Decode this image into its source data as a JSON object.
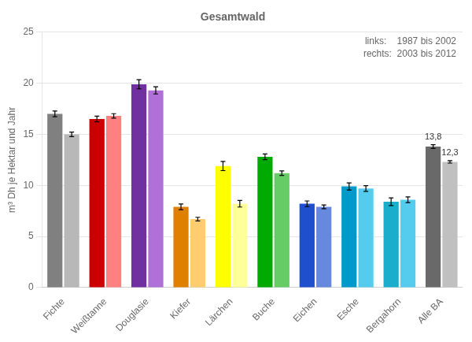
{
  "chart_data": {
    "type": "bar",
    "title": "Gesamtwald",
    "categories": [
      "Fichte",
      "Weißtanne",
      "Douglasie",
      "Kiefer",
      "Lärchen",
      "Buche",
      "Eichen",
      "Esche",
      "Bergahorn",
      "Alle BA"
    ],
    "series": [
      {
        "name": "links:    1987 bis 2002",
        "values": [
          17.0,
          16.5,
          19.9,
          7.9,
          11.9,
          12.8,
          8.2,
          9.9,
          8.4,
          13.8
        ],
        "errors": [
          0.28,
          0.28,
          0.45,
          0.28,
          0.45,
          0.28,
          0.28,
          0.35,
          0.38,
          0.18
        ],
        "colors": [
          "#808080",
          "#cc0000",
          "#7030a0",
          "#e08000",
          "#ffff00",
          "#00aa00",
          "#1f4fcc",
          "#0099cc",
          "#1aadcc",
          "#696969"
        ]
      },
      {
        "name": "rechts:  2003 bis 2012",
        "values": [
          15.0,
          16.8,
          19.3,
          6.7,
          8.2,
          11.2,
          7.9,
          9.7,
          8.6,
          12.3
        ],
        "errors": [
          0.22,
          0.22,
          0.35,
          0.18,
          0.32,
          0.22,
          0.18,
          0.28,
          0.28,
          0.12
        ],
        "colors": [
          "#b8b8b8",
          "#ff8080",
          "#b070d8",
          "#ffcc70",
          "#ffff99",
          "#66cc66",
          "#6688dd",
          "#55ccee",
          "#55ccee",
          "#c0c0c0"
        ]
      }
    ],
    "ylabel": "m³ Dh je Hektar und Jahr",
    "ylim": [
      0,
      25
    ],
    "yticks": [
      0,
      5,
      10,
      15,
      20,
      25
    ],
    "grid": true,
    "legend": "upper right",
    "annotations": [
      {
        "text": "13,8",
        "category": "Alle BA",
        "series": "links:    1987 bis 2002"
      },
      {
        "text": "12,3",
        "category": "Alle BA",
        "series": "rechts:  2003 bis 2012"
      }
    ]
  }
}
